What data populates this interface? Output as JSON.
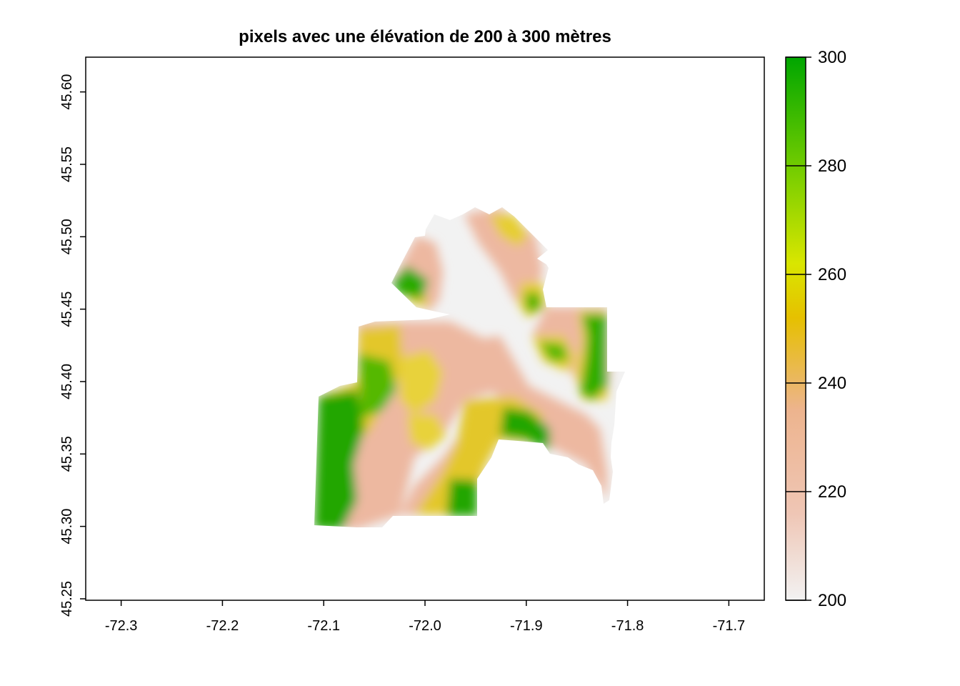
{
  "title": "pixels avec une élévation de 200 à 300 mètres",
  "map": {
    "x_ticks": [
      {
        "value": -72.3,
        "label": "-72.3"
      },
      {
        "value": -72.2,
        "label": "-72.2"
      },
      {
        "value": -72.1,
        "label": "-72.1"
      },
      {
        "value": -72.0,
        "label": "-72.0"
      },
      {
        "value": -71.9,
        "label": "-71.9"
      },
      {
        "value": -71.8,
        "label": "-71.8"
      },
      {
        "value": -71.7,
        "label": "-71.7"
      }
    ],
    "y_ticks": [
      {
        "value": 45.25,
        "label": "45.25"
      },
      {
        "value": 45.3,
        "label": "45.30"
      },
      {
        "value": 45.35,
        "label": "45.35"
      },
      {
        "value": 45.4,
        "label": "45.40"
      },
      {
        "value": 45.45,
        "label": "45.45"
      },
      {
        "value": 45.5,
        "label": "45.50"
      },
      {
        "value": 45.55,
        "label": "45.55"
      },
      {
        "value": 45.6,
        "label": "45.60"
      }
    ],
    "x_range": [
      -72.335,
      -71.665
    ],
    "y_range": [
      45.249,
      45.624
    ],
    "raster_lower_limit": 200,
    "raster_upper_limit": 300,
    "na_color": "#ffffff"
  },
  "legend": {
    "range": [
      200,
      300
    ],
    "ticks": [
      {
        "value": 200,
        "label": "200"
      },
      {
        "value": 220,
        "label": "220"
      },
      {
        "value": 240,
        "label": "240"
      },
      {
        "value": 260,
        "label": "260"
      },
      {
        "value": 280,
        "label": "280"
      },
      {
        "value": 300,
        "label": "300"
      }
    ],
    "colors": [
      "#F2F2F2",
      "#EFC6B5",
      "#EDB48E",
      "#E6C000",
      "#D9E600",
      "#7CCF00",
      "#00A600"
    ]
  }
}
